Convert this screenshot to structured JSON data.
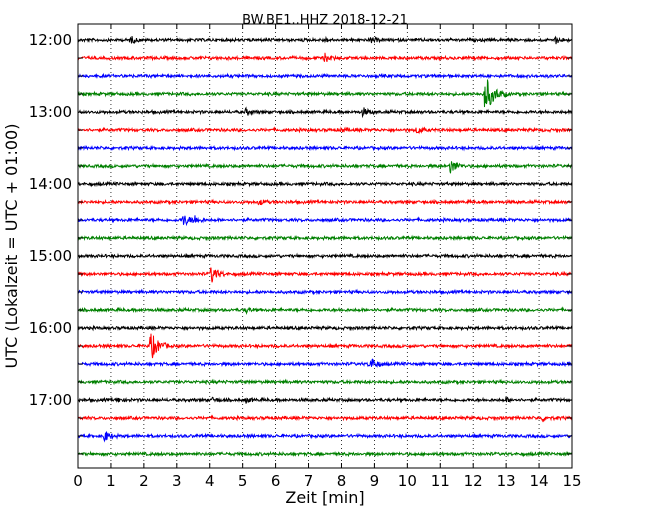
{
  "chart_data": {
    "type": "line",
    "title": "BW.BE1..HHZ 2018-12-21",
    "xlabel": "Zeit  [min]",
    "ylabel": "UTC (Lokalzeit = UTC + 01:00)",
    "xlim": [
      0,
      15
    ],
    "x_ticks": [
      "0",
      "1",
      "2",
      "3",
      "4",
      "5",
      "6",
      "7",
      "8",
      "9",
      "10",
      "11",
      "12",
      "13",
      "14",
      "15"
    ],
    "y_ticks": [
      "12:00",
      "13:00",
      "14:00",
      "15:00",
      "16:00",
      "17:00"
    ],
    "grid": "vertical dotted",
    "trace_interval_minutes": 15,
    "colors": [
      "#000000",
      "#ff0000",
      "#0000ff",
      "#008000"
    ],
    "traces": [
      {
        "start": "12:00",
        "color": "#000000",
        "events": [
          {
            "t": 1.6,
            "a": 0.35
          },
          {
            "t": 8.9,
            "a": 0.3
          },
          {
            "t": 14.5,
            "a": 0.35
          },
          {
            "t": 7.5,
            "a": 0.2
          }
        ]
      },
      {
        "start": "12:15",
        "color": "#ff0000",
        "events": [
          {
            "t": 7.5,
            "a": 0.45
          }
        ]
      },
      {
        "start": "12:30",
        "color": "#0000ff",
        "events": []
      },
      {
        "start": "12:45",
        "color": "#008000",
        "events": [
          {
            "t": 12.35,
            "a": 2.2
          }
        ]
      },
      {
        "start": "13:00",
        "color": "#000000",
        "events": [
          {
            "t": 5.1,
            "a": 0.35
          },
          {
            "t": 8.65,
            "a": 0.45
          }
        ]
      },
      {
        "start": "13:15",
        "color": "#ff0000",
        "events": [
          {
            "t": 10.3,
            "a": 0.4
          },
          {
            "t": 8.0,
            "a": 0.2
          }
        ]
      },
      {
        "start": "13:30",
        "color": "#0000ff",
        "events": []
      },
      {
        "start": "13:45",
        "color": "#008000",
        "events": [
          {
            "t": 11.3,
            "a": 0.85
          }
        ]
      },
      {
        "start": "14:00",
        "color": "#000000",
        "events": []
      },
      {
        "start": "14:15",
        "color": "#ff0000",
        "events": [
          {
            "t": 5.5,
            "a": 0.3
          }
        ]
      },
      {
        "start": "14:30",
        "color": "#0000ff",
        "events": [
          {
            "t": 3.2,
            "a": 0.7
          },
          {
            "t": 3.5,
            "a": 0.5
          }
        ]
      },
      {
        "start": "14:45",
        "color": "#008000",
        "events": []
      },
      {
        "start": "15:00",
        "color": "#000000",
        "events": []
      },
      {
        "start": "15:15",
        "color": "#ff0000",
        "events": [
          {
            "t": 4.05,
            "a": 1.0
          }
        ]
      },
      {
        "start": "15:30",
        "color": "#0000ff",
        "events": []
      },
      {
        "start": "15:45",
        "color": "#008000",
        "events": [
          {
            "t": 5.1,
            "a": 0.25
          }
        ]
      },
      {
        "start": "16:00",
        "color": "#000000",
        "events": []
      },
      {
        "start": "16:15",
        "color": "#ff0000",
        "events": [
          {
            "t": 2.2,
            "a": 1.6
          }
        ]
      },
      {
        "start": "16:30",
        "color": "#0000ff",
        "events": [
          {
            "t": 8.85,
            "a": 0.8
          }
        ]
      },
      {
        "start": "16:45",
        "color": "#008000",
        "events": []
      },
      {
        "start": "17:00",
        "color": "#000000",
        "events": [
          {
            "t": 1.2,
            "a": 0.25
          },
          {
            "t": 4.1,
            "a": 0.25
          },
          {
            "t": 5.1,
            "a": 0.25
          },
          {
            "t": 13.0,
            "a": 0.25
          }
        ]
      },
      {
        "start": "17:15",
        "color": "#ff0000",
        "events": [
          {
            "t": 14.1,
            "a": 0.35
          }
        ]
      },
      {
        "start": "17:30",
        "color": "#0000ff",
        "events": [
          {
            "t": 0.8,
            "a": 0.6
          }
        ]
      },
      {
        "start": "17:45",
        "color": "#008000",
        "events": []
      }
    ]
  }
}
